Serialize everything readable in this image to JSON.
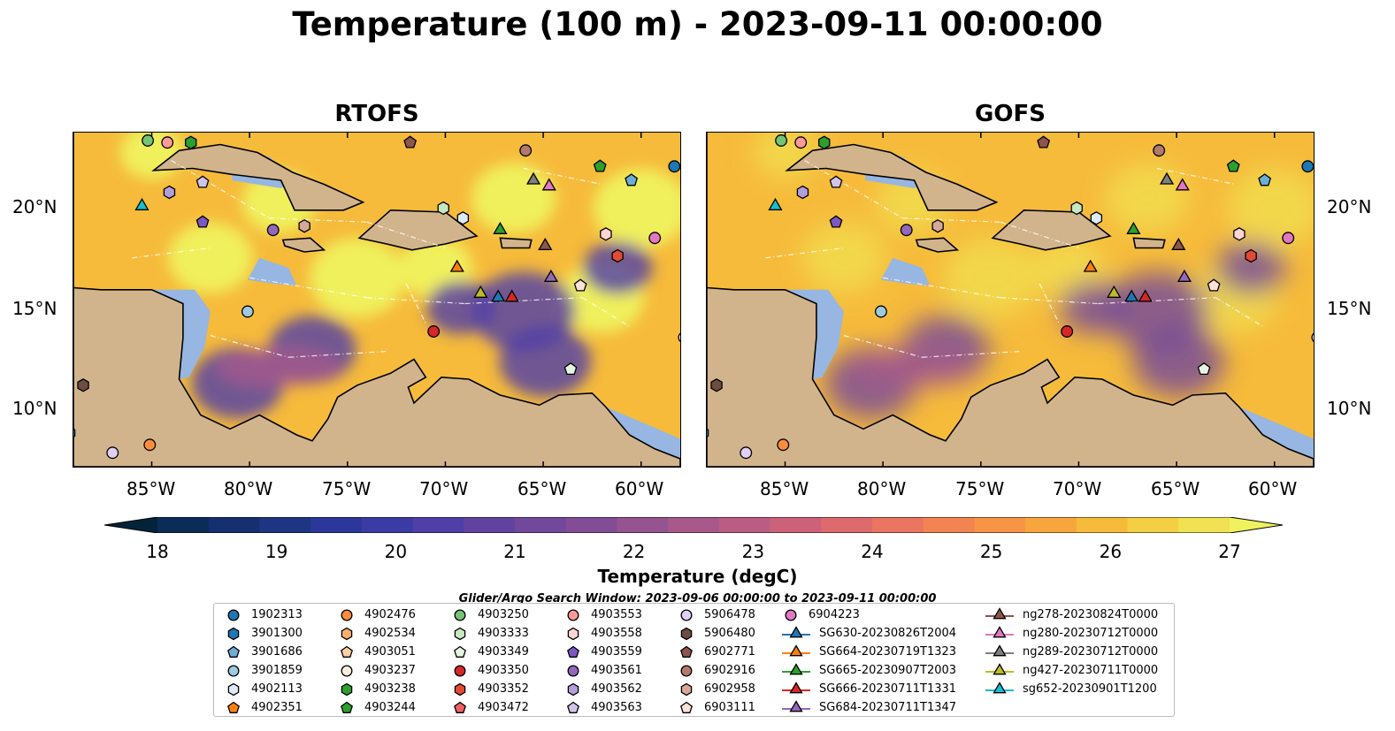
{
  "title": "Temperature (100 m) - 2023-09-11 00:00:00",
  "panels": [
    {
      "title": "RTOFS"
    },
    {
      "title": "GOFS"
    }
  ],
  "lat_labels": [
    "20°N",
    "15°N",
    "10°N"
  ],
  "lon_labels": [
    "85°W",
    "80°W",
    "75°W",
    "70°W",
    "65°W",
    "60°W"
  ],
  "map_extent": {
    "lon": [
      -89,
      -58
    ],
    "lat": [
      7,
      23.8
    ]
  },
  "colorbar": {
    "label": "Temperature (degC)",
    "min": 18,
    "max": 27,
    "step": 0.5,
    "ticks": [
      "18",
      "19",
      "20",
      "21",
      "22",
      "23",
      "24",
      "25",
      "26",
      "27"
    ],
    "colormap": [
      "#03233b",
      "#0a2c56",
      "#152f70",
      "#1e3583",
      "#2b3799",
      "#3b3ba6",
      "#4f3fa7",
      "#61439f",
      "#72489b",
      "#834d96",
      "#955390",
      "#a8588a",
      "#bb5d82",
      "#cc627a",
      "#dd6a6c",
      "#ea7560",
      "#f28452",
      "#f69545",
      "#f7a63d",
      "#f6bb3b",
      "#f4cf44",
      "#f1e253",
      "#eff25e"
    ],
    "extend": "both",
    "land_color": "#d2b48c",
    "ocean_color": "#97b6e1"
  },
  "search_window": "Glider/Argo Search Window: 2023-09-06 00:00:00 to 2023-09-11 00:00:00",
  "legend": {
    "columns": [
      [
        {
          "label": "1902313",
          "marker": "circle",
          "color": "#1f77b4"
        },
        {
          "label": "3901300",
          "marker": "hexagon",
          "color": "#1f77b4"
        },
        {
          "label": "3901686",
          "marker": "pentagon",
          "color": "#6baed6"
        },
        {
          "label": "3901859",
          "marker": "circle",
          "color": "#9ecae1"
        },
        {
          "label": "4902113",
          "marker": "hexagon",
          "color": "#deebf7"
        },
        {
          "label": "4902351",
          "marker": "pentagon",
          "color": "#ff7f0e"
        }
      ],
      [
        {
          "label": "4902476",
          "marker": "circle",
          "color": "#fd8d3c"
        },
        {
          "label": "4902534",
          "marker": "hexagon",
          "color": "#fdae6b"
        },
        {
          "label": "4903051",
          "marker": "pentagon",
          "color": "#fdd0a2"
        },
        {
          "label": "4903237",
          "marker": "circle",
          "color": "#feedde"
        },
        {
          "label": "4903238",
          "marker": "hexagon",
          "color": "#2ca02c"
        },
        {
          "label": "4903244",
          "marker": "pentagon",
          "color": "#2ca02c"
        }
      ],
      [
        {
          "label": "4903250",
          "marker": "circle",
          "color": "#74c476"
        },
        {
          "label": "4903333",
          "marker": "hexagon",
          "color": "#c7e9c0"
        },
        {
          "label": "4903349",
          "marker": "pentagon",
          "color": "#e5f5e0"
        },
        {
          "label": "4903350",
          "marker": "circle",
          "color": "#d62728"
        },
        {
          "label": "4903352",
          "marker": "hexagon",
          "color": "#e34a33"
        },
        {
          "label": "4903472",
          "marker": "pentagon",
          "color": "#f06060"
        }
      ],
      [
        {
          "label": "4903553",
          "marker": "circle",
          "color": "#fc9a9a"
        },
        {
          "label": "4903558",
          "marker": "hexagon",
          "color": "#fdd5d5"
        },
        {
          "label": "4903559",
          "marker": "pentagon",
          "color": "#7e57c2"
        },
        {
          "label": "4903561",
          "marker": "circle",
          "color": "#9467bd"
        },
        {
          "label": "4903562",
          "marker": "hexagon",
          "color": "#b39ddb"
        },
        {
          "label": "4903563",
          "marker": "pentagon",
          "color": "#d1c4e9"
        }
      ],
      [
        {
          "label": "5906478",
          "marker": "circle",
          "color": "#e1d0f5"
        },
        {
          "label": "5906480",
          "marker": "hexagon",
          "color": "#6d4c41"
        },
        {
          "label": "6902771",
          "marker": "pentagon",
          "color": "#8c564b"
        },
        {
          "label": "6902916",
          "marker": "circle",
          "color": "#b07b6b"
        },
        {
          "label": "6902958",
          "marker": "hexagon",
          "color": "#d7a898"
        },
        {
          "label": "6903111",
          "marker": "pentagon",
          "color": "#fde0d6"
        }
      ],
      [
        {
          "label": "6904223",
          "marker": "circle",
          "color": "#e377c2"
        },
        {
          "label": "SG630-20230826T2004",
          "marker": "triangle",
          "color": "#1f77b4"
        },
        {
          "label": "SG664-20230719T1323",
          "marker": "triangle",
          "color": "#ff7f0e"
        },
        {
          "label": "SG665-20230907T2003",
          "marker": "triangle",
          "color": "#2ca02c"
        },
        {
          "label": "SG666-20230711T1331",
          "marker": "triangle",
          "color": "#d62728"
        },
        {
          "label": "SG684-20230711T1347",
          "marker": "triangle",
          "color": "#9467bd"
        }
      ],
      [
        {
          "label": "ng278-20230824T0000",
          "marker": "triangle",
          "color": "#8c564b"
        },
        {
          "label": "ng280-20230712T0000",
          "marker": "triangle",
          "color": "#e377c2"
        },
        {
          "label": "ng289-20230712T0000",
          "marker": "triangle",
          "color": "#7f7f7f"
        },
        {
          "label": "ng427-20230711T0000",
          "marker": "triangle",
          "color": "#bcbd22"
        },
        {
          "label": "sg652-20230901T1200",
          "marker": "triangle",
          "color": "#17becf"
        }
      ]
    ]
  },
  "observations": [
    {
      "id": "1902313",
      "lon": -58.3,
      "lat": 22.1
    },
    {
      "id": "3901300",
      "lon": -89.2,
      "lat": 8.7
    },
    {
      "id": "3901686",
      "lon": -60.5,
      "lat": 21.4
    },
    {
      "id": "3901859",
      "lon": -80.1,
      "lat": 14.8
    },
    {
      "id": "4902113",
      "lon": -69.1,
      "lat": 19.5
    },
    {
      "id": "4902476",
      "lon": -85.1,
      "lat": 8.1
    },
    {
      "id": "4903237",
      "lon": -57.8,
      "lat": 13.5
    },
    {
      "id": "4903238",
      "lon": -83.0,
      "lat": 23.3
    },
    {
      "id": "4903244",
      "lon": -62.1,
      "lat": 22.1
    },
    {
      "id": "4903250",
      "lon": -85.2,
      "lat": 23.4
    },
    {
      "id": "4903333",
      "lon": -70.1,
      "lat": 20.0
    },
    {
      "id": "4903349",
      "lon": -63.6,
      "lat": 11.9
    },
    {
      "id": "4903350",
      "lon": -70.6,
      "lat": 13.8
    },
    {
      "id": "4903352",
      "lon": -61.2,
      "lat": 17.6
    },
    {
      "id": "4903553",
      "lon": -84.2,
      "lat": 23.3
    },
    {
      "id": "4903558",
      "lon": -61.8,
      "lat": 18.7
    },
    {
      "id": "4903559",
      "lon": -82.4,
      "lat": 19.3
    },
    {
      "id": "4903561",
      "lon": -78.8,
      "lat": 18.9
    },
    {
      "id": "4903562",
      "lon": -84.1,
      "lat": 20.8
    },
    {
      "id": "4903563",
      "lon": -82.4,
      "lat": 21.3
    },
    {
      "id": "5906478",
      "lon": -87.0,
      "lat": 7.7
    },
    {
      "id": "5906480",
      "lon": -88.5,
      "lat": 11.1
    },
    {
      "id": "6902771",
      "lon": -71.8,
      "lat": 23.3
    },
    {
      "id": "6902916",
      "lon": -65.9,
      "lat": 22.9
    },
    {
      "id": "6902958",
      "lon": -77.2,
      "lat": 19.1
    },
    {
      "id": "6903111",
      "lon": -63.1,
      "lat": 16.1
    },
    {
      "id": "6904223",
      "lon": -59.3,
      "lat": 18.5
    },
    {
      "id": "SG630-20230826T2004",
      "lon": -67.3,
      "lat": 15.5
    },
    {
      "id": "SG664-20230719T1323",
      "lon": -69.4,
      "lat": 17.0
    },
    {
      "id": "SG665-20230907T2003",
      "lon": -67.2,
      "lat": 18.9
    },
    {
      "id": "SG666-20230711T1331",
      "lon": -66.6,
      "lat": 15.5
    },
    {
      "id": "SG684-20230711T1347",
      "lon": -64.6,
      "lat": 16.5
    },
    {
      "id": "ng278-20230824T0000",
      "lon": -64.9,
      "lat": 18.1
    },
    {
      "id": "ng280-20230712T0000",
      "lon": -64.7,
      "lat": 21.1
    },
    {
      "id": "ng289-20230712T0000",
      "lon": -65.5,
      "lat": 21.4
    },
    {
      "id": "ng427-20230711T0000",
      "lon": -68.2,
      "lat": 15.7
    },
    {
      "id": "sg652-20230901T1200",
      "lon": -85.5,
      "lat": 20.1
    }
  ]
}
